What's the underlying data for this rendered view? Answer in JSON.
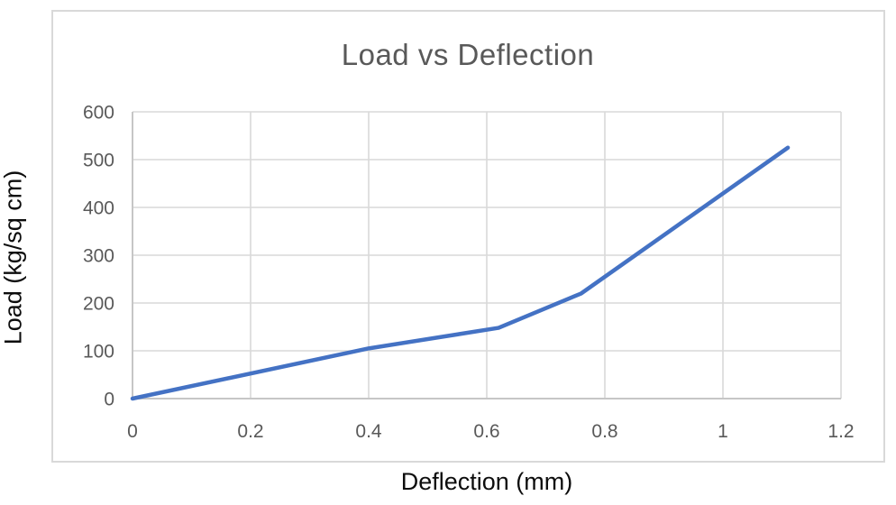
{
  "chart_data": {
    "type": "line",
    "title": "Load vs Deflection",
    "xlabel": "Deflection (mm)",
    "ylabel": "Load (kg/sq cm)",
    "series": [
      {
        "name": "Load vs Deflection",
        "points": [
          {
            "x": 0,
            "y": 0
          },
          {
            "x": 0.4,
            "y": 105
          },
          {
            "x": 0.62,
            "y": 148
          },
          {
            "x": 0.76,
            "y": 220
          },
          {
            "x": 1.11,
            "y": 525
          }
        ]
      }
    ],
    "xlim": [
      0,
      1.2
    ],
    "ylim": [
      0,
      600
    ],
    "x_ticks": {
      "values": [
        0,
        0.2,
        0.4,
        0.6,
        0.8,
        1,
        1.2
      ],
      "labels": [
        "0",
        "0.2",
        "0.4",
        "0.6",
        "0.8",
        "1",
        "1.2"
      ]
    },
    "y_ticks": {
      "values": [
        0,
        100,
        200,
        300,
        400,
        500,
        600
      ],
      "labels": [
        "0",
        "100",
        "200",
        "300",
        "400",
        "500",
        "600"
      ]
    },
    "grid": "both",
    "legend": "none",
    "markers": "none",
    "colors": {
      "line": "#4472C4",
      "gridline": "#d9d9d9",
      "axis_line": "#c6c6c6",
      "tick_text": "#595959",
      "title_text": "#595959",
      "axis_title_text": "#0d0d0d",
      "chart_border": "#d9d9d9",
      "background": "#ffffff"
    }
  }
}
